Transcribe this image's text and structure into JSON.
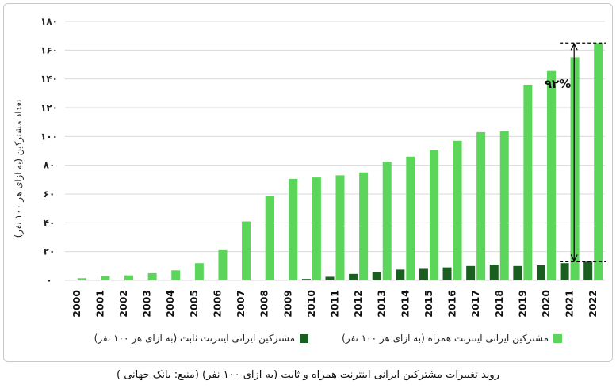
{
  "chart_data": {
    "type": "bar",
    "ylabel": "تعداد مشترکین (به ازای هر ۱۰۰ نفر)",
    "ylim": [
      0,
      180
    ],
    "yticks": [
      0,
      20,
      40,
      60,
      80,
      100,
      120,
      140,
      160,
      180
    ],
    "ytick_labels": [
      "۰",
      "۲۰",
      "۴۰",
      "۶۰",
      "۸۰",
      "۱۰۰",
      "۱۲۰",
      "۱۴۰",
      "۱۶۰",
      "۱۸۰"
    ],
    "categories": [
      "2000",
      "2001",
      "2002",
      "2003",
      "2004",
      "2005",
      "2006",
      "2007",
      "2008",
      "2009",
      "2010",
      "2011",
      "2012",
      "2013",
      "2014",
      "2015",
      "2016",
      "2017",
      "2018",
      "2019",
      "2020",
      "2021",
      "2022"
    ],
    "series": [
      {
        "name": "مشترکین ایرانی اینترنت ثابت (به ازای هر ۱۰۰ نفر)",
        "color": "#1a5e20",
        "values": [
          0,
          0,
          0,
          0,
          0,
          0,
          0,
          0,
          0,
          0.3,
          1,
          2.5,
          4.5,
          6,
          7.5,
          8,
          9,
          10,
          11,
          10,
          10.5,
          12,
          13
        ]
      },
      {
        "name": "مشترکین ایرانی اینترنت همراه (به ازای هر ۱۰۰ نفر)",
        "color": "#5bd65b",
        "values": [
          1.5,
          3,
          3.5,
          5,
          7,
          12,
          21,
          41,
          58.5,
          70.5,
          71.5,
          73,
          75,
          82.5,
          86,
          90.5,
          97,
          103,
          103.5,
          136,
          145.5,
          155,
          165
        ]
      }
    ],
    "annotation": {
      "text": "۹۲%",
      "from_value": 13,
      "to_value": 165
    },
    "legend_position": "bottom",
    "grid": "horizontal"
  },
  "caption": "روند تغییرات مشترکین ایرانی اینترنت همراه و ثابت (به ازای ۱۰۰ نفر) (منبع: بانک جهانی )"
}
